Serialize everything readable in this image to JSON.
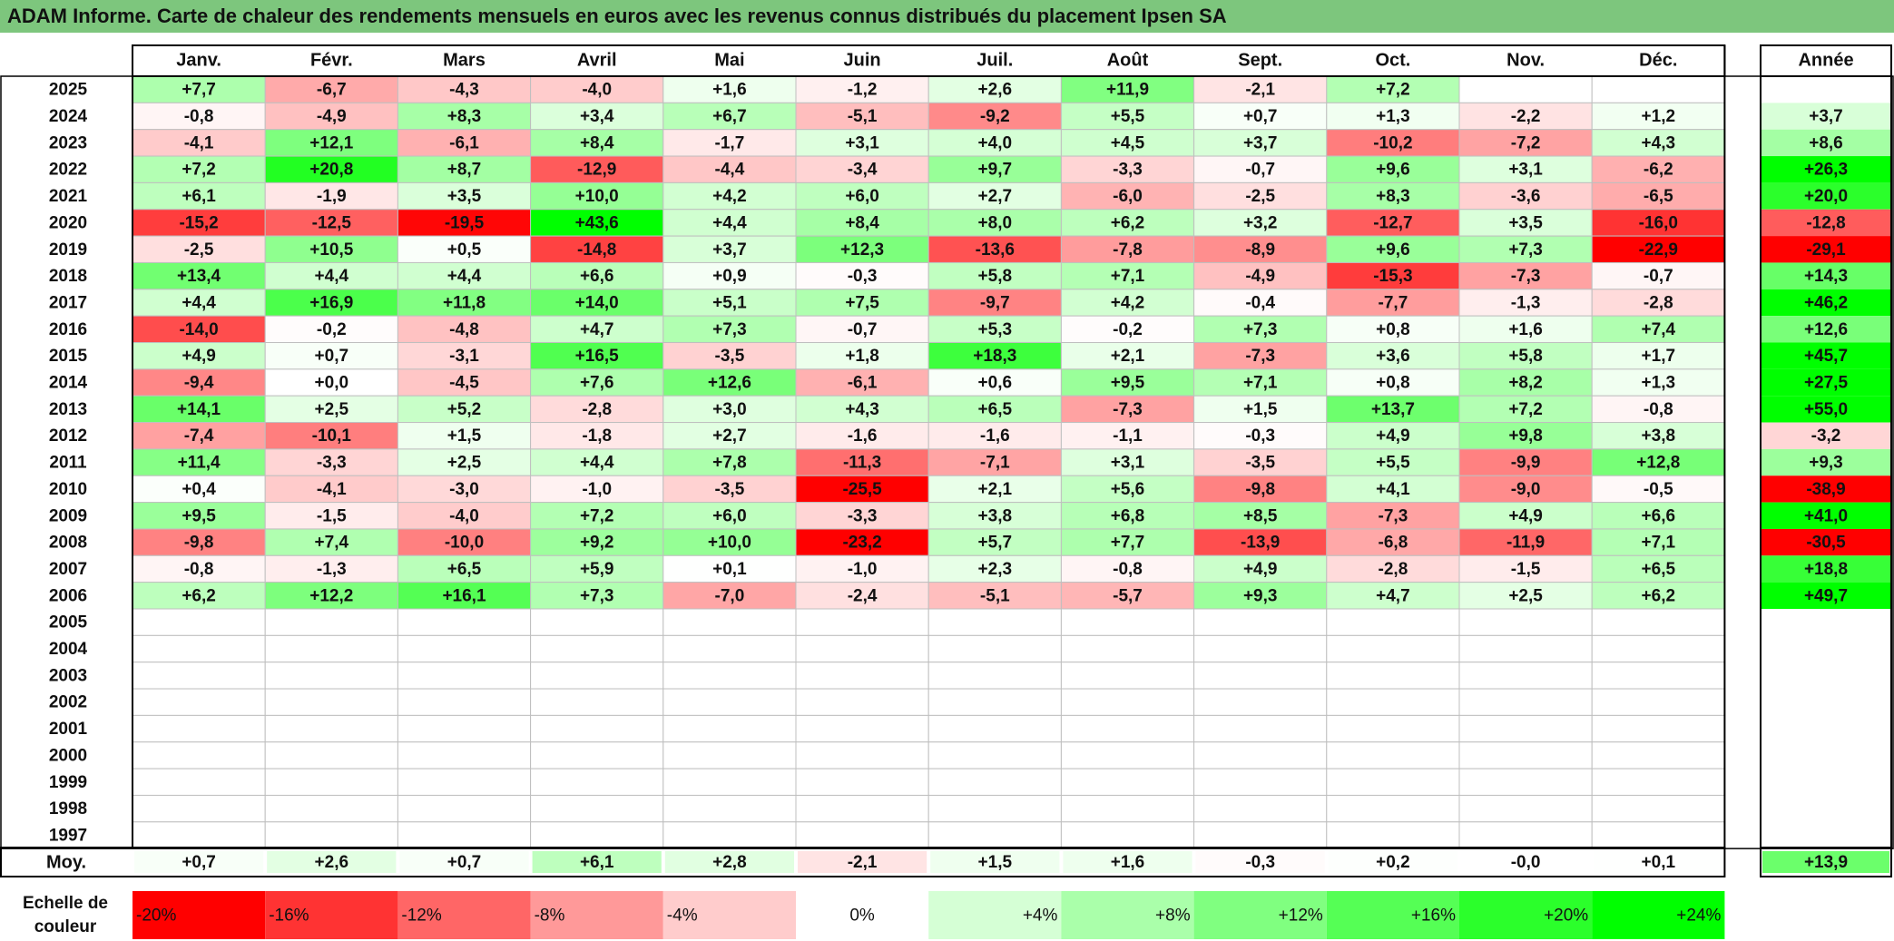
{
  "title": "ADAM Informe. Carte de chaleur des rendements mensuels en euros avec les revenus connus distribués du placement Ipsen SA",
  "chart_data": {
    "type": "heatmap",
    "months": [
      "Janv.",
      "Févr.",
      "Mars",
      "Avril",
      "Mai",
      "Juin",
      "Juil.",
      "Août",
      "Sept.",
      "Oct.",
      "Nov.",
      "Déc."
    ],
    "year_header": "Année",
    "avg_label": "Moy.",
    "scale_label": [
      "Echelle de",
      "couleur"
    ],
    "rows": [
      {
        "year": "2025",
        "values": [
          "+7,7",
          "-6,7",
          "-4,3",
          "-4,0",
          "+1,6",
          "-1,2",
          "+2,6",
          "+11,9",
          "-2,1",
          "+7,2",
          "",
          ""
        ],
        "annual": ""
      },
      {
        "year": "2024",
        "values": [
          "-0,8",
          "-4,9",
          "+8,3",
          "+3,4",
          "+6,7",
          "-5,1",
          "-9,2",
          "+5,5",
          "+0,7",
          "+1,3",
          "-2,2",
          "+1,2"
        ],
        "annual": "+3,7"
      },
      {
        "year": "2023",
        "values": [
          "-4,1",
          "+12,1",
          "-6,1",
          "+8,4",
          "-1,7",
          "+3,1",
          "+4,0",
          "+4,5",
          "+3,7",
          "-10,2",
          "-7,2",
          "+4,3"
        ],
        "annual": "+8,6"
      },
      {
        "year": "2022",
        "values": [
          "+7,2",
          "+20,8",
          "+8,7",
          "-12,9",
          "-4,4",
          "-3,4",
          "+9,7",
          "-3,3",
          "-0,7",
          "+9,6",
          "+3,1",
          "-6,2"
        ],
        "annual": "+26,3"
      },
      {
        "year": "2021",
        "values": [
          "+6,1",
          "-1,9",
          "+3,5",
          "+10,0",
          "+4,2",
          "+6,0",
          "+2,7",
          "-6,0",
          "-2,5",
          "+8,3",
          "-3,6",
          "-6,5"
        ],
        "annual": "+20,0"
      },
      {
        "year": "2020",
        "values": [
          "-15,2",
          "-12,5",
          "-19,5",
          "+43,6",
          "+4,4",
          "+8,4",
          "+8,0",
          "+6,2",
          "+3,2",
          "-12,7",
          "+3,5",
          "-16,0"
        ],
        "annual": "-12,8"
      },
      {
        "year": "2019",
        "values": [
          "-2,5",
          "+10,5",
          "+0,5",
          "-14,8",
          "+3,7",
          "+12,3",
          "-13,6",
          "-7,8",
          "-8,9",
          "+9,6",
          "+7,3",
          "-22,9"
        ],
        "annual": "-29,1"
      },
      {
        "year": "2018",
        "values": [
          "+13,4",
          "+4,4",
          "+4,4",
          "+6,6",
          "+0,9",
          "-0,3",
          "+5,8",
          "+7,1",
          "-4,9",
          "-15,3",
          "-7,3",
          "-0,7"
        ],
        "annual": "+14,3"
      },
      {
        "year": "2017",
        "values": [
          "+4,4",
          "+16,9",
          "+11,8",
          "+14,0",
          "+5,1",
          "+7,5",
          "-9,7",
          "+4,2",
          "-0,4",
          "-7,7",
          "-1,3",
          "-2,8"
        ],
        "annual": "+46,2"
      },
      {
        "year": "2016",
        "values": [
          "-14,0",
          "-0,2",
          "-4,8",
          "+4,7",
          "+7,3",
          "-0,7",
          "+5,3",
          "-0,2",
          "+7,3",
          "+0,8",
          "+1,6",
          "+7,4"
        ],
        "annual": "+12,6"
      },
      {
        "year": "2015",
        "values": [
          "+4,9",
          "+0,7",
          "-3,1",
          "+16,5",
          "-3,5",
          "+1,8",
          "+18,3",
          "+2,1",
          "-7,3",
          "+3,6",
          "+5,8",
          "+1,7"
        ],
        "annual": "+45,7"
      },
      {
        "year": "2014",
        "values": [
          "-9,4",
          "+0,0",
          "-4,5",
          "+7,6",
          "+12,6",
          "-6,1",
          "+0,6",
          "+9,5",
          "+7,1",
          "+0,8",
          "+8,2",
          "+1,3"
        ],
        "annual": "+27,5"
      },
      {
        "year": "2013",
        "values": [
          "+14,1",
          "+2,5",
          "+5,2",
          "-2,8",
          "+3,0",
          "+4,3",
          "+6,5",
          "-7,3",
          "+1,5",
          "+13,7",
          "+7,2",
          "-0,8"
        ],
        "annual": "+55,0"
      },
      {
        "year": "2012",
        "values": [
          "-7,4",
          "-10,1",
          "+1,5",
          "-1,8",
          "+2,7",
          "-1,6",
          "-1,6",
          "-1,1",
          "-0,3",
          "+4,9",
          "+9,8",
          "+3,8"
        ],
        "annual": "-3,2"
      },
      {
        "year": "2011",
        "values": [
          "+11,4",
          "-3,3",
          "+2,5",
          "+4,4",
          "+7,8",
          "-11,3",
          "-7,1",
          "+3,1",
          "-3,5",
          "+5,5",
          "-9,9",
          "+12,8"
        ],
        "annual": "+9,3"
      },
      {
        "year": "2010",
        "values": [
          "+0,4",
          "-4,1",
          "-3,0",
          "-1,0",
          "-3,5",
          "-25,5",
          "+2,1",
          "+5,6",
          "-9,8",
          "+4,1",
          "-9,0",
          "-0,5"
        ],
        "annual": "-38,9"
      },
      {
        "year": "2009",
        "values": [
          "+9,5",
          "-1,5",
          "-4,0",
          "+7,2",
          "+6,0",
          "-3,3",
          "+3,8",
          "+6,8",
          "+8,5",
          "-7,3",
          "+4,9",
          "+6,6"
        ],
        "annual": "+41,0"
      },
      {
        "year": "2008",
        "values": [
          "-9,8",
          "+7,4",
          "-10,0",
          "+9,2",
          "+10,0",
          "-23,2",
          "+5,7",
          "+7,7",
          "-13,9",
          "-6,8",
          "-11,9",
          "+7,1"
        ],
        "annual": "-30,5"
      },
      {
        "year": "2007",
        "values": [
          "-0,8",
          "-1,3",
          "+6,5",
          "+5,9",
          "+0,1",
          "-1,0",
          "+2,3",
          "-0,8",
          "+4,9",
          "-2,8",
          "-1,5",
          "+6,5"
        ],
        "annual": "+18,8"
      },
      {
        "year": "2006",
        "values": [
          "+6,2",
          "+12,2",
          "+16,1",
          "+7,3",
          "-7,0",
          "-2,4",
          "-5,1",
          "-5,7",
          "+9,3",
          "+4,7",
          "+2,5",
          "+6,2"
        ],
        "annual": "+49,7"
      },
      {
        "year": "2005",
        "values": [
          "",
          "",
          "",
          "",
          "",
          "",
          "",
          "",
          "",
          "",
          "",
          ""
        ],
        "annual": ""
      },
      {
        "year": "2004",
        "values": [
          "",
          "",
          "",
          "",
          "",
          "",
          "",
          "",
          "",
          "",
          "",
          ""
        ],
        "annual": ""
      },
      {
        "year": "2003",
        "values": [
          "",
          "",
          "",
          "",
          "",
          "",
          "",
          "",
          "",
          "",
          "",
          ""
        ],
        "annual": ""
      },
      {
        "year": "2002",
        "values": [
          "",
          "",
          "",
          "",
          "",
          "",
          "",
          "",
          "",
          "",
          "",
          ""
        ],
        "annual": ""
      },
      {
        "year": "2001",
        "values": [
          "",
          "",
          "",
          "",
          "",
          "",
          "",
          "",
          "",
          "",
          "",
          ""
        ],
        "annual": ""
      },
      {
        "year": "2000",
        "values": [
          "",
          "",
          "",
          "",
          "",
          "",
          "",
          "",
          "",
          "",
          "",
          ""
        ],
        "annual": ""
      },
      {
        "year": "1999",
        "values": [
          "",
          "",
          "",
          "",
          "",
          "",
          "",
          "",
          "",
          "",
          "",
          ""
        ],
        "annual": ""
      },
      {
        "year": "1998",
        "values": [
          "",
          "",
          "",
          "",
          "",
          "",
          "",
          "",
          "",
          "",
          "",
          ""
        ],
        "annual": ""
      },
      {
        "year": "1997",
        "values": [
          "",
          "",
          "",
          "",
          "",
          "",
          "",
          "",
          "",
          "",
          "",
          ""
        ],
        "annual": ""
      }
    ],
    "average": {
      "values": [
        "+0,7",
        "+2,6",
        "+0,7",
        "+6,1",
        "+2,8",
        "-2,1",
        "+1,5",
        "+1,6",
        "-0,3",
        "+0,2",
        "-0,0",
        "+0,1"
      ],
      "annual": "+13,9"
    },
    "scale": [
      "-20%",
      "-16%",
      "-12%",
      "-8%",
      "-4%",
      "0%",
      "+4%",
      "+8%",
      "+12%",
      "+16%",
      "+20%",
      "+24%"
    ],
    "scale_values": [
      -20,
      -16,
      -12,
      -8,
      -4,
      0,
      4,
      8,
      12,
      16,
      20,
      24
    ],
    "color_range": [
      -20,
      24
    ],
    "colors": {
      "negative": "#ff0000",
      "neutral": "#ffffff",
      "positive": "#00ff00",
      "title_bar": "#7dc67d"
    }
  }
}
